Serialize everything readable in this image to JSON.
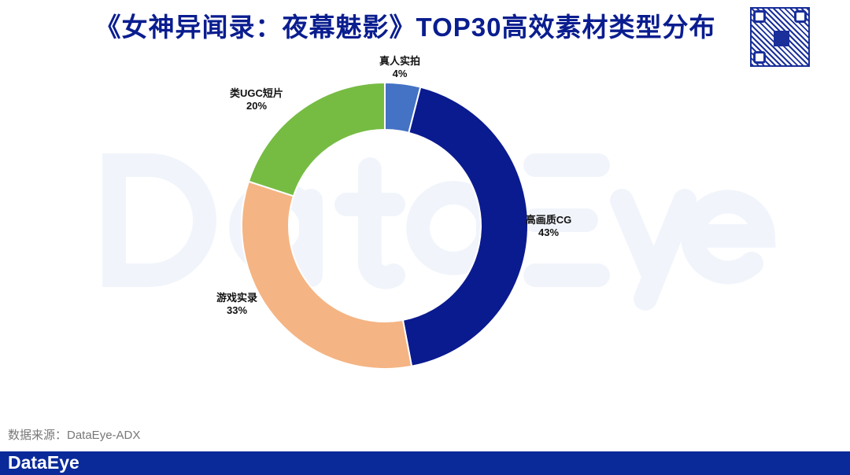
{
  "title": "《女神异闻录：夜幕魅影》TOP30高效素材类型分布",
  "watermark": "DataEye",
  "source": "数据来源：DataEye-ADX",
  "footer_logo": "DataEye",
  "chart_data": {
    "type": "pie",
    "style": "donut",
    "title": "《女神异闻录：夜幕魅影》TOP30高效素材类型分布",
    "categories": [
      "真人实拍",
      "高画质CG",
      "游戏实录",
      "类UGC短片"
    ],
    "values": [
      4,
      43,
      33,
      20
    ],
    "labels": [
      "4%",
      "43%",
      "33%",
      "20%"
    ],
    "colors": [
      "#4472c4",
      "#0a1a8f",
      "#f5b483",
      "#76bc43"
    ]
  }
}
